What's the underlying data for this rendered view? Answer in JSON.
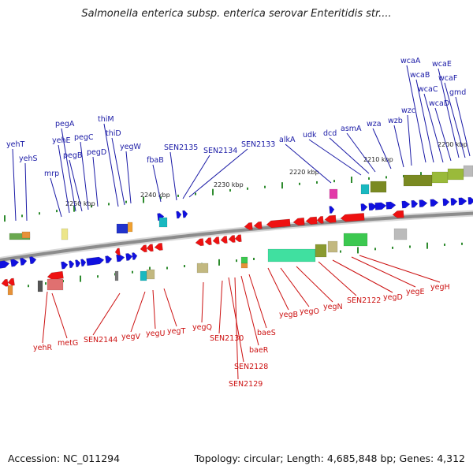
{
  "title": "Salmonella enterica subsp. enterica serovar Enteritidis str....",
  "footer": {
    "accession": "Accession: NC_011294",
    "topology": "Topology: circular; Length: 4,685,848 bp; Genes: 4,312"
  },
  "colors": {
    "forward_label": "#1a1aa6",
    "reverse_label": "#cc1111",
    "forward_gene": "#1010e0",
    "reverse_gene": "#ee1111",
    "backbone": "#8c8c8c",
    "tick": "#2e8b2e"
  },
  "scale_labels": [
    "2200 kbp",
    "2210 kbp",
    "2220 kbp",
    "2230 kbp",
    "2240 kbp",
    "2250 kbp"
  ],
  "forward_genes": [
    "yehT",
    "yehS",
    "mrp",
    "yehE",
    "pegA",
    "pegB",
    "pegC",
    "pegD",
    "thiM",
    "thiD",
    "yegW",
    "fbaB",
    "SEN2135",
    "SEN2134",
    "SEN2133",
    "alkA",
    "udk",
    "dcd",
    "asmA",
    "wza",
    "wzb",
    "wzc",
    "wcaA",
    "wcaB",
    "wcaC",
    "wcaD",
    "wcaE",
    "wcaF",
    "gmd"
  ],
  "reverse_genes": [
    "yehR",
    "metG",
    "SEN2144",
    "yegV",
    "yegU",
    "yegT",
    "yegQ",
    "SEN2130",
    "SEN2128",
    "SEN2129",
    "baeR",
    "baeS",
    "yegB",
    "yegO",
    "yegN",
    "SEN2122",
    "yegD",
    "yegE",
    "yegH"
  ]
}
